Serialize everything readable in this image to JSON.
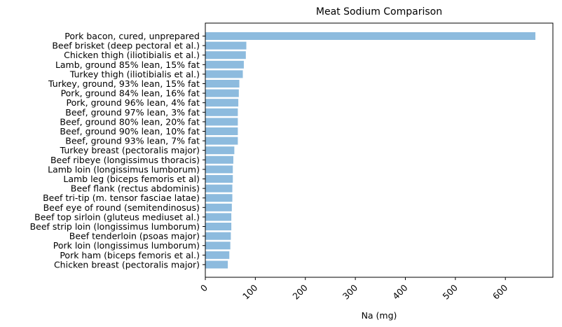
{
  "chart_data": {
    "type": "bar",
    "orientation": "horizontal",
    "title": "Meat Sodium Comparison",
    "xlabel": "Na (mg)",
    "ylabel": "",
    "xlim": [
      0,
      695
    ],
    "x_ticks": [
      0,
      100,
      200,
      300,
      400,
      500,
      600
    ],
    "x_tick_rotation": 45,
    "bar_color": "#8dbbde",
    "grid": false,
    "categories": [
      "Pork bacon, cured, unprepared",
      "Beef brisket (deep pectoral et al.)",
      "Chicken thigh (iliotibialis et al.)",
      "Lamb, ground 85% lean, 15% fat",
      "Turkey thigh (iliotibialis et al.)",
      "Turkey, ground, 93% lean, 15% fat",
      "Pork, ground 84% lean, 16% fat",
      "Pork, ground 96% lean, 4% fat",
      "Beef, ground 97% lean, 3% fat",
      "Beef, ground 80% lean, 20% fat",
      "Beef, ground 90% lean, 10% fat",
      "Beef, ground 93% lean, 7% fat",
      "Turkey breast (pectoralis major)",
      "Beef ribeye (longissimus thoracis)",
      "Lamb loin (longissimus lumborum)",
      "Lamb leg (biceps femoris et al)",
      "Beef flank (rectus abdominis)",
      "Beef tri-tip (m. tensor fasciae latae)",
      "Beef eye of round (semitendinosus)",
      "Beef top sirloin (gluteus mediuset al.)",
      "Beef strip loin (longissimus lumborum)",
      "Beef tenderloin (psoas major)",
      "Pork loin (longissimus lumborum)",
      "Pork ham (biceps femoris et al.)",
      "Chicken breast (pectoralis major)"
    ],
    "values": [
      660,
      82,
      81,
      77,
      75,
      68,
      67,
      66,
      65,
      65,
      65,
      65,
      58,
      56,
      55,
      55,
      54,
      54,
      53,
      52,
      52,
      51,
      50,
      48,
      45
    ]
  }
}
